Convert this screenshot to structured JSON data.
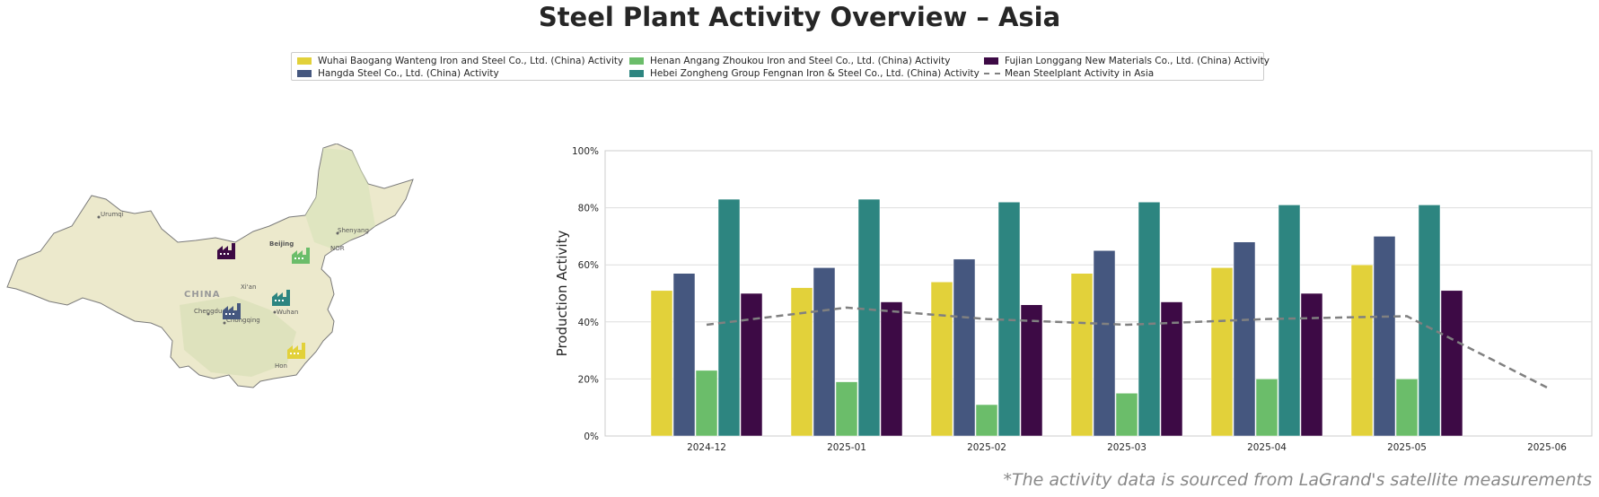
{
  "title": "Steel Plant Activity Overview – Asia",
  "footnote": "*The activity data is sourced from LaGrand's satellite measurements",
  "legend": [
    {
      "label": "Wuhai Baogang Wanteng Iron and Steel Co., Ltd. (China) Activity",
      "color": "#e2d13a",
      "kind": "bar"
    },
    {
      "label": "Hangda Steel Co., Ltd. (China) Activity",
      "color": "#45577f",
      "kind": "bar"
    },
    {
      "label": "Henan Angang Zhoukou Iron and Steel Co., Ltd. (China) Activity",
      "color": "#6bbd6a",
      "kind": "bar"
    },
    {
      "label": "Hebei Zongheng Group Fengnan Iron & Steel Co., Ltd. (China) Activity",
      "color": "#2d8580",
      "kind": "bar"
    },
    {
      "label": "Fujian Longgang New Materials Co., Ltd. (China) Activity",
      "color": "#3d0a45",
      "kind": "bar"
    },
    {
      "label": "Mean Steelplant Activity in Asia",
      "color": "#808080",
      "kind": "dashed-line"
    }
  ],
  "map": {
    "labels": {
      "country": "CHINA",
      "cities": [
        "Urumqi",
        "Beijing",
        "Shenyang",
        "Xi'an",
        "Chengdu",
        "Chongqing",
        "Wuhan",
        "NOR",
        "Hon"
      ]
    },
    "plant_icons": [
      "factory-icon-purple",
      "factory-icon-green",
      "factory-icon-teal",
      "factory-icon-navy",
      "factory-icon-yellow"
    ]
  },
  "chart_data": {
    "type": "bar",
    "ylabel": "Production Activity",
    "xlabel": "",
    "ylim": [
      0,
      100
    ],
    "y_ticks": [
      "0%",
      "20%",
      "40%",
      "60%",
      "80%",
      "100%"
    ],
    "categories": [
      "2024-12",
      "2025-01",
      "2025-02",
      "2025-03",
      "2025-04",
      "2025-05",
      "2025-06"
    ],
    "grid": true,
    "series": [
      {
        "name": "Wuhai Baogang Wanteng Iron and Steel Co., Ltd. (China) Activity",
        "color": "#e2d13a",
        "values": [
          51,
          52,
          54,
          57,
          59,
          60,
          null
        ]
      },
      {
        "name": "Hangda Steel Co., Ltd. (China) Activity",
        "color": "#45577f",
        "values": [
          57,
          59,
          62,
          65,
          68,
          70,
          null
        ]
      },
      {
        "name": "Henan Angang Zhoukou Iron and Steel Co., Ltd. (China) Activity",
        "color": "#6bbd6a",
        "values": [
          23,
          19,
          11,
          15,
          20,
          20,
          null
        ]
      },
      {
        "name": "Hebei Zongheng Group Fengnan Iron & Steel Co., Ltd. (China) Activity",
        "color": "#2d8580",
        "values": [
          83,
          83,
          82,
          82,
          81,
          81,
          null
        ]
      },
      {
        "name": "Fujian Longgang New Materials Co., Ltd. (China) Activity",
        "color": "#3d0a45",
        "values": [
          50,
          47,
          46,
          47,
          50,
          51,
          null
        ]
      }
    ],
    "mean_line": {
      "name": "Mean Steelplant Activity in Asia",
      "color": "#808080",
      "values": [
        39,
        45,
        41,
        39,
        41,
        42,
        17
      ]
    }
  }
}
